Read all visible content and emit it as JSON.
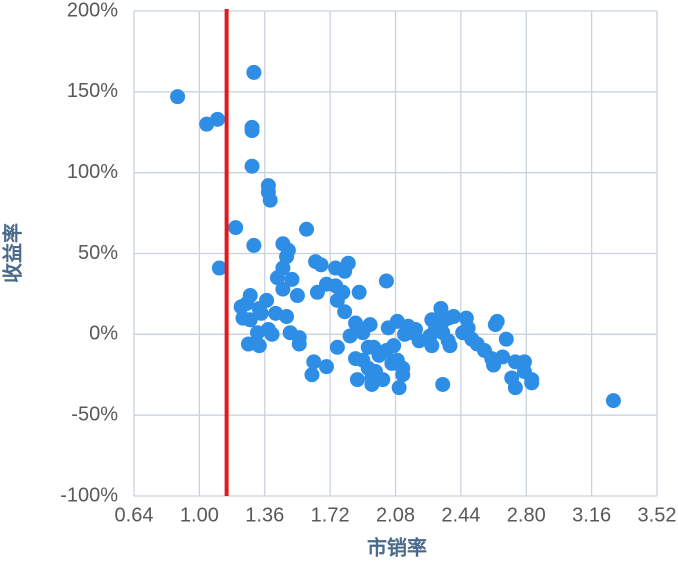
{
  "chart_data": {
    "type": "scatter",
    "x_label": "市销率",
    "y_label": "收益率",
    "x": [
      0.88,
      1.04,
      1.1,
      1.3,
      1.29,
      1.29,
      1.29,
      1.2,
      1.11,
      1.38,
      1.38,
      1.39,
      1.3,
      1.59,
      1.46,
      1.49,
      1.48,
      1.46,
      1.43,
      1.46,
      1.54,
      1.51,
      1.64,
      1.67,
      1.75,
      1.82,
      1.8,
      1.7,
      1.75,
      1.65,
      1.79,
      1.76,
      1.8,
      1.88,
      2.03,
      1.23,
      1.28,
      1.26,
      1.33,
      1.37,
      1.24,
      1.28,
      1.34,
      1.42,
      1.48,
      1.38,
      1.32,
      1.4,
      1.5,
      1.55,
      1.55,
      1.27,
      1.33,
      1.63,
      1.62,
      1.7,
      1.76,
      1.83,
      1.86,
      1.9,
      1.94,
      1.93,
      1.99,
      1.86,
      1.9,
      1.96,
      2.03,
      1.93,
      1.97,
      1.95,
      1.87,
      1.95,
      2.01,
      2.09,
      2.07,
      2.04,
      2.09,
      2.12,
      2.1,
      2.06,
      2.12,
      2.15,
      2.17,
      2.13,
      2.19,
      2.21,
      2.28,
      2.28,
      2.3,
      2.27,
      2.33,
      2.34,
      2.34,
      2.37,
      2.4,
      2.37,
      2.38,
      2.34,
      2.45,
      2.48,
      2.5,
      2.53,
      2.57,
      2.61,
      2.67,
      2.62,
      2.47,
      2.63,
      2.64,
      2.69,
      2.74,
      2.72,
      2.79,
      2.74,
      2.83,
      2.79,
      2.83,
      3.28
    ],
    "values": [
      147,
      130,
      133,
      162,
      128,
      126,
      104,
      66,
      41,
      92,
      88,
      83,
      55,
      65,
      56,
      52,
      48,
      41,
      35,
      28,
      24,
      34,
      45,
      43,
      41,
      44,
      39,
      31,
      30,
      26,
      26,
      21,
      14,
      26,
      33,
      17,
      24,
      19,
      16,
      21,
      10,
      9,
      13,
      13,
      11,
      3,
      1,
      0,
      1,
      -2,
      -6,
      -6,
      -7,
      -17,
      -25,
      -20,
      -8,
      -1,
      7,
      1,
      6,
      -8,
      -13,
      -15,
      -16,
      -8,
      -10,
      -21,
      -23,
      -27,
      -28,
      -31,
      -28,
      -16,
      -7,
      4,
      8,
      -25,
      -33,
      -18,
      -21,
      5,
      1,
      0,
      3,
      -4,
      -7,
      9,
      3,
      -1,
      16,
      8,
      1,
      10,
      11,
      -4,
      -7,
      -31,
      1,
      4,
      -3,
      -6,
      -10,
      -15,
      -14,
      -19,
      10,
      6,
      8,
      -3,
      -17,
      -27,
      -17,
      -33,
      -28,
      -23,
      -30,
      -41
    ],
    "color": "#2e8ee6",
    "xlim": [
      0.64,
      3.52
    ],
    "xticks": [
      0.64,
      {
        "value": 1,
        "label": "1.00"
      },
      1.36,
      1.72,
      2.08,
      2.44,
      {
        "value": 2.8,
        "label": "2.80"
      },
      3.16,
      3.52
    ],
    "ylim": [
      -100,
      200
    ],
    "yticks": [
      {
        "value": -100,
        "label": "-100%"
      },
      {
        "value": -50,
        "label": "-50%"
      },
      {
        "value": 0,
        "label": "0%"
      },
      {
        "value": 50,
        "label": "50%"
      },
      {
        "value": 100,
        "label": "100%"
      },
      {
        "value": 150,
        "label": "150%"
      },
      {
        "value": 200,
        "label": "200%"
      }
    ],
    "grid": true,
    "reference_line": {
      "x": 1.15,
      "color": "#e0191f"
    }
  }
}
